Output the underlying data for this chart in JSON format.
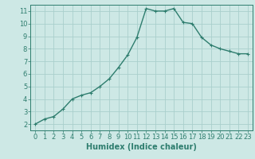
{
  "x": [
    0,
    1,
    2,
    3,
    4,
    5,
    6,
    7,
    8,
    9,
    10,
    11,
    12,
    13,
    14,
    15,
    16,
    17,
    18,
    19,
    20,
    21,
    22,
    23
  ],
  "y": [
    2.0,
    2.4,
    2.6,
    3.2,
    4.0,
    4.3,
    4.5,
    5.0,
    5.6,
    6.5,
    7.5,
    8.9,
    11.2,
    11.0,
    11.0,
    11.2,
    10.1,
    10.0,
    8.9,
    8.3,
    8.0,
    7.8,
    7.6,
    7.6
  ],
  "xlabel": "Humidex (Indice chaleur)",
  "xlim": [
    -0.5,
    23.5
  ],
  "ylim": [
    1.5,
    11.5
  ],
  "xticks": [
    0,
    1,
    2,
    3,
    4,
    5,
    6,
    7,
    8,
    9,
    10,
    11,
    12,
    13,
    14,
    15,
    16,
    17,
    18,
    19,
    20,
    21,
    22,
    23
  ],
  "yticks": [
    2,
    3,
    4,
    5,
    6,
    7,
    8,
    9,
    10,
    11
  ],
  "line_color": "#2e7d6e",
  "bg_color": "#cde8e5",
  "grid_color": "#aacfcc",
  "xlabel_fontsize": 7,
  "tick_fontsize": 6,
  "line_width": 1.0,
  "marker_size": 2.5
}
